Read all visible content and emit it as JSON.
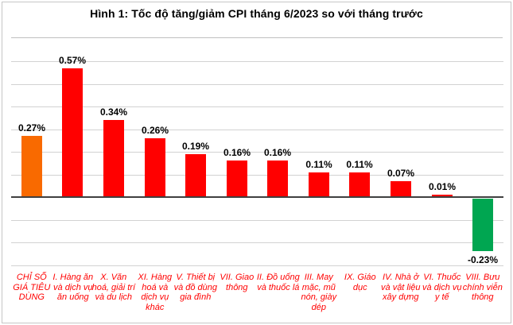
{
  "header": {
    "title": "Hình 1: Tốc độ tăng/giảm CPI tháng 6/2023 so với tháng trước"
  },
  "chart_data": {
    "type": "bar",
    "title": "Hình 1: Tốc độ tăng/giảm CPI tháng 6/2023 so với tháng trước",
    "categories": [
      "CHỈ SỐ GIÁ TIÊU DÙNG",
      "I. Hàng ăn và dịch vụ ăn uống",
      "X. Văn hoá, giải trí và du lịch",
      "XI. Hàng hoá và dịch vụ khác",
      "V. Thiết bị và đồ dùng gia đình",
      "VII. Giao thông",
      "II. Đồ uống và thuốc lá",
      "III. May mặc, mũ nón, giày dép",
      "IX. Giáo dục",
      "IV. Nhà ở và vật liệu xây dựng",
      "VI. Thuốc và dịch vụ y tế",
      "VIII. Bưu chính viễn thông"
    ],
    "values": [
      0.27,
      0.57,
      0.34,
      0.26,
      0.19,
      0.16,
      0.16,
      0.11,
      0.11,
      0.07,
      0.01,
      -0.23
    ],
    "value_labels": [
      "0.27%",
      "0.57%",
      "0.34%",
      "0.26%",
      "0.19%",
      "0.16%",
      "0.16%",
      "0.11%",
      "0.11%",
      "0.07%",
      "0.01%",
      "-0.23%"
    ],
    "bar_colors": [
      "#f96a00",
      "#ff0000",
      "#ff0000",
      "#ff0000",
      "#ff0000",
      "#ff0000",
      "#ff0000",
      "#ff0000",
      "#ff0000",
      "#ff0000",
      "#ff0000",
      "#00a651"
    ],
    "unit": "%",
    "xlabel": "",
    "ylabel": "",
    "ylim": [
      -0.3,
      0.6
    ],
    "gridline_step": 0.1,
    "grid": true,
    "legend": "none",
    "styles": {
      "highlight_bar": "#f96a00",
      "positive_bar": "#ff0000",
      "negative_bar": "#00a651",
      "gridline": "#d2d2d2",
      "zero_axis": "#404040",
      "category_label_color": "#ff0000",
      "value_label_color": "#000000",
      "title_color": "#000000",
      "border_color": "#c6c6c6",
      "background": "#ffffff"
    }
  }
}
